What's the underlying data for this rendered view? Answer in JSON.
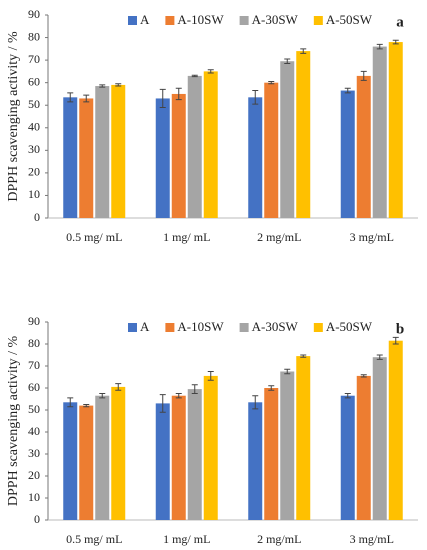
{
  "chart_data": [
    {
      "type": "bar",
      "panel_label": "a",
      "ylabel": "DPPH scavenging activity / %",
      "categories": [
        "0.5 mg/ mL",
        "1 mg/ mL",
        "2 mg/mL",
        "3 mg/mL"
      ],
      "series": [
        {
          "name": "A",
          "color": "#4472c4",
          "values": [
            53.5,
            53,
            53.5,
            56.5
          ],
          "errors": [
            2,
            4,
            3,
            1
          ]
        },
        {
          "name": "A-10SW",
          "color": "#ed7d31",
          "values": [
            53,
            55,
            60,
            63
          ],
          "errors": [
            1.5,
            2.5,
            0.5,
            2
          ]
        },
        {
          "name": "A-30SW",
          "color": "#a5a5a5",
          "values": [
            58.5,
            63,
            69.5,
            76
          ],
          "errors": [
            0.5,
            0.3,
            1,
            1
          ]
        },
        {
          "name": "A-50SW",
          "color": "#ffc000",
          "values": [
            59,
            65,
            74,
            78
          ],
          "errors": [
            0.5,
            0.7,
            1,
            0.8
          ]
        }
      ],
      "ylim": [
        0,
        90
      ],
      "yticks": [
        0,
        10,
        20,
        30,
        40,
        50,
        60,
        70,
        80,
        90
      ],
      "grid": false
    },
    {
      "type": "bar",
      "panel_label": "b",
      "ylabel": "DPPH scavenging activity / %",
      "categories": [
        "0.5 mg/ mL",
        "1 mg/ mL",
        "2 mg/mL",
        "3 mg/mL"
      ],
      "series": [
        {
          "name": "A",
          "color": "#4472c4",
          "values": [
            53.5,
            53,
            53.5,
            56.5
          ],
          "errors": [
            2,
            4,
            3,
            1
          ]
        },
        {
          "name": "A-10SW",
          "color": "#ed7d31",
          "values": [
            52,
            56.5,
            60,
            65.5
          ],
          "errors": [
            0.5,
            1,
            1,
            0.5
          ]
        },
        {
          "name": "A-30SW",
          "color": "#a5a5a5",
          "values": [
            56.5,
            59.5,
            67.5,
            74
          ],
          "errors": [
            1,
            2,
            1,
            1
          ]
        },
        {
          "name": "A-50SW",
          "color": "#ffc000",
          "values": [
            60.5,
            65.5,
            74.5,
            81.5
          ],
          "errors": [
            1.5,
            2,
            0.5,
            1.5
          ]
        }
      ],
      "ylim": [
        0,
        90
      ],
      "yticks": [
        0,
        10,
        20,
        30,
        40,
        50,
        60,
        70,
        80,
        90
      ],
      "grid": false
    }
  ]
}
